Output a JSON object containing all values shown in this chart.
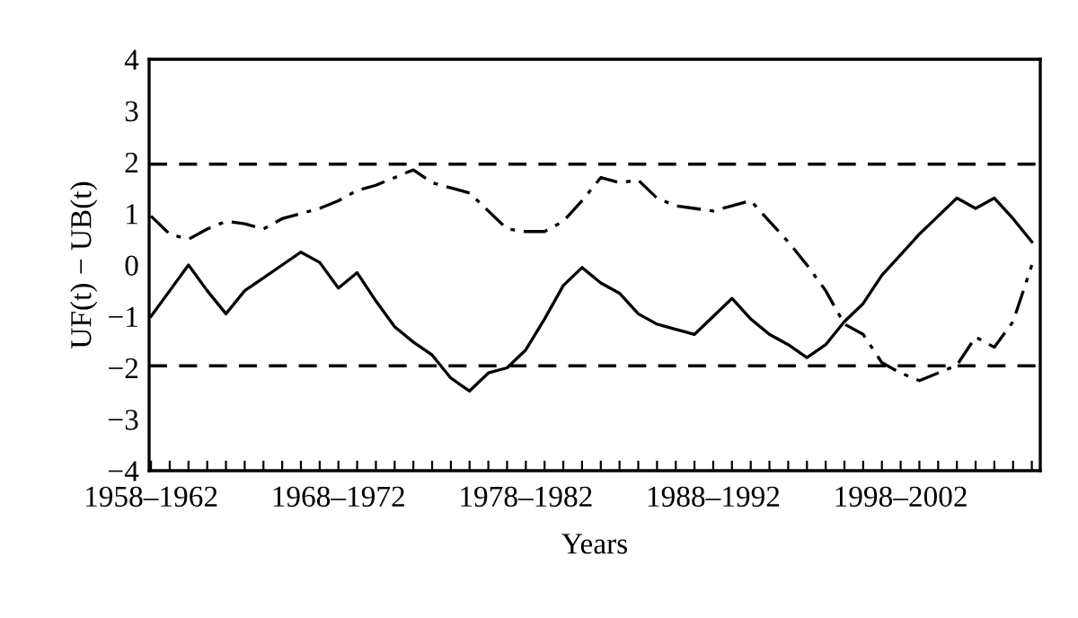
{
  "chart_data": {
    "type": "line",
    "xlabel": "Years",
    "ylabel": "UF(t) − UB(t)",
    "categories": [
      "1958–1962",
      null,
      null,
      null,
      null,
      null,
      null,
      null,
      null,
      null,
      "1968–1972",
      null,
      null,
      null,
      null,
      null,
      null,
      null,
      null,
      null,
      "1978–1982",
      null,
      null,
      null,
      null,
      null,
      null,
      null,
      null,
      null,
      "1988–1992",
      null,
      null,
      null,
      null,
      null,
      null,
      null,
      null,
      null,
      "1998–2002",
      null,
      null,
      null,
      null,
      null,
      null,
      null
    ],
    "ylim": [
      -4,
      4
    ],
    "yticks": [
      {
        "value": -4,
        "label": "−4"
      },
      {
        "value": -3,
        "label": "−3"
      },
      {
        "value": -2,
        "label": "−2"
      },
      {
        "value": -1,
        "label": "−1"
      },
      0,
      1,
      2,
      3,
      4
    ],
    "grid": false,
    "marker": "none",
    "ref_lines": [
      {
        "axis": "y",
        "value": 1.96,
        "color": "#000000",
        "line_style": "dashed"
      },
      {
        "axis": "y",
        "value": -1.96,
        "color": "#000000",
        "line_style": "dashed"
      }
    ],
    "series": [
      {
        "color": "#000000",
        "line_style": "solid",
        "values": [
          -1.0,
          -0.5,
          0.0,
          -0.5,
          -0.95,
          -0.5,
          -0.25,
          0.0,
          0.25,
          0.05,
          -0.45,
          -0.15,
          -0.7,
          -1.2,
          -1.5,
          -1.75,
          -2.2,
          -2.45,
          -2.1,
          -2.0,
          -1.65,
          -1.05,
          -0.4,
          -0.05,
          -0.35,
          -0.55,
          -0.95,
          -1.15,
          -1.25,
          -1.35,
          -1.0,
          -0.65,
          -1.05,
          -1.35,
          -1.55,
          -1.8,
          -1.55,
          -1.1,
          -0.75,
          -0.2,
          0.2,
          0.6,
          0.95,
          1.3,
          1.1,
          1.3,
          0.9,
          0.45
        ]
      },
      {
        "color": "#000000",
        "line_style": "dashdot",
        "values": [
          0.95,
          0.6,
          0.5,
          0.7,
          0.85,
          0.8,
          0.7,
          0.9,
          1.0,
          1.1,
          1.25,
          1.45,
          1.55,
          1.7,
          1.85,
          1.6,
          1.5,
          1.4,
          1.05,
          0.7,
          0.65,
          0.65,
          0.85,
          1.25,
          1.7,
          1.6,
          1.65,
          1.3,
          1.15,
          1.1,
          1.05,
          1.15,
          1.25,
          0.85,
          0.45,
          0.0,
          -0.5,
          -1.15,
          -1.35,
          -1.9,
          -2.1,
          -2.25,
          -2.1,
          -1.95,
          -1.4,
          -1.6,
          -1.1,
          0.0
        ]
      }
    ]
  }
}
